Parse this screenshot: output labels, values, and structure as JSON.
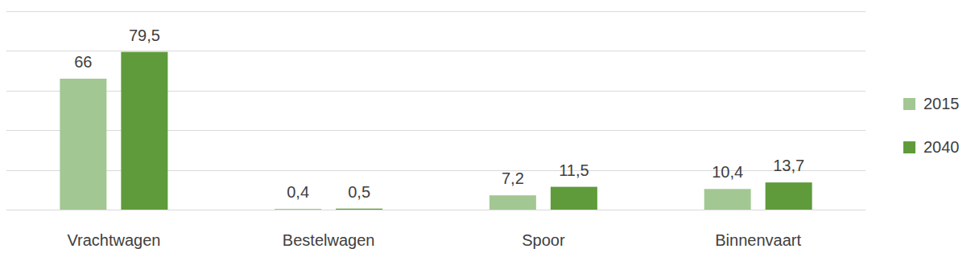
{
  "chart_data": {
    "type": "bar",
    "categories": [
      "Vrachtwagen",
      "Bestelwagen",
      "Spoor",
      "Binnenvaart"
    ],
    "series": [
      {
        "name": "2015",
        "color": "#a3c793",
        "values": [
          66,
          0.4,
          7.2,
          10.4
        ],
        "value_labels": [
          "66",
          "0,4",
          "7,2",
          "10,4"
        ]
      },
      {
        "name": "2040",
        "color": "#5f9b3b",
        "values": [
          79.5,
          0.5,
          11.5,
          13.7
        ],
        "value_labels": [
          "79,5",
          "0,5",
          "11,5",
          "13,7"
        ]
      }
    ],
    "ylim": [
      0,
      100
    ],
    "yticks": [
      0,
      20,
      40,
      60,
      80,
      100
    ],
    "grid": true,
    "data_labels": true,
    "tick_labels": "x",
    "legend": "right"
  }
}
